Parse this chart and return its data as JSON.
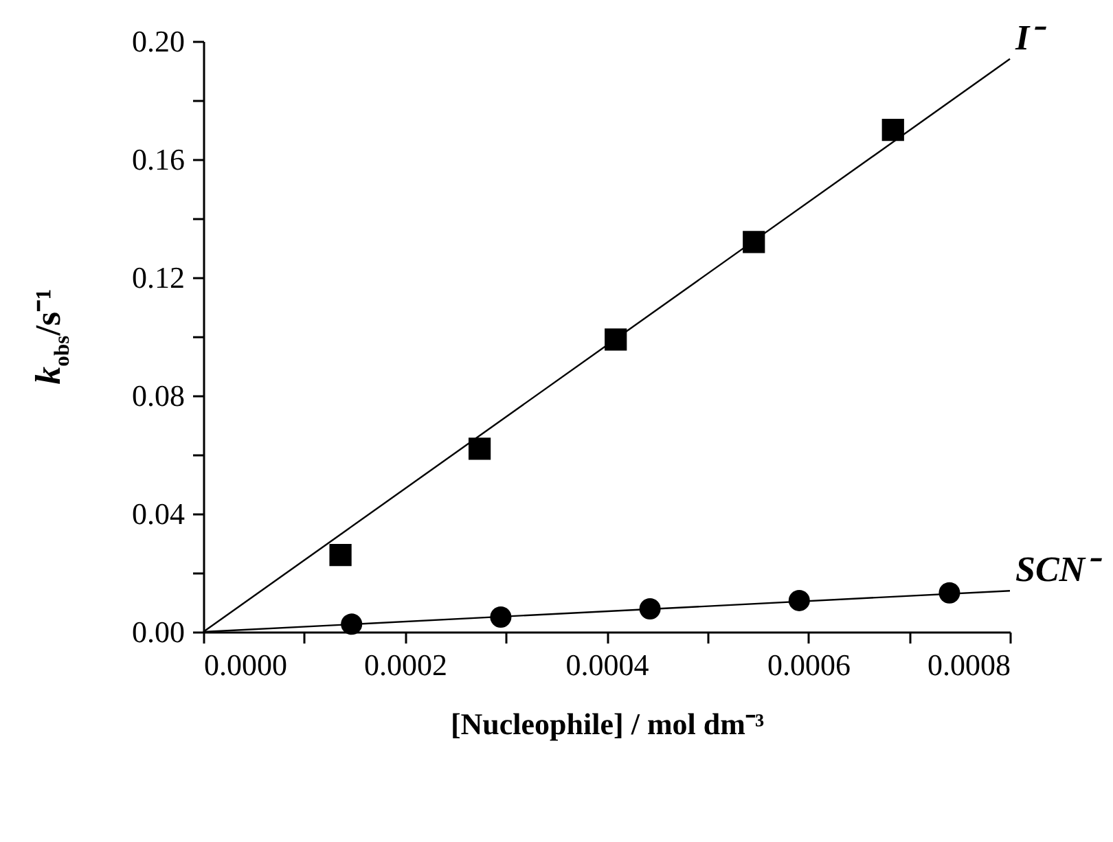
{
  "chart_data": {
    "type": "scatter",
    "xlabel": "[Nucleophile] / mol dm⁻³",
    "ylabel": "k$_{obs}$/s⁻¹",
    "xlim": [
      0,
      0.0008
    ],
    "ylim": [
      0,
      0.2
    ],
    "xticks": [
      {
        "value": 0,
        "label": "0.0000"
      },
      {
        "value": 0.0001,
        "label": null
      },
      {
        "value": 0.0002,
        "label": "0.0002"
      },
      {
        "value": 0.0003,
        "label": null
      },
      {
        "value": 0.0004,
        "label": "0.0004"
      },
      {
        "value": 0.0005,
        "label": null
      },
      {
        "value": 0.0006,
        "label": "0.0006"
      },
      {
        "value": 0.0007,
        "label": null
      },
      {
        "value": 0.0008,
        "label": "0.0008"
      }
    ],
    "yticks": [
      {
        "value": 0,
        "label": "0.00"
      },
      {
        "value": 0.02,
        "label": null
      },
      {
        "value": 0.04,
        "label": "0.04"
      },
      {
        "value": 0.06,
        "label": null
      },
      {
        "value": 0.08,
        "label": "0.08"
      },
      {
        "value": 0.1,
        "label": null
      },
      {
        "value": 0.12,
        "label": "0.12"
      },
      {
        "value": 0.14,
        "label": null
      },
      {
        "value": 0.16,
        "label": "0.16"
      },
      {
        "value": 0.18,
        "label": null
      },
      {
        "value": 0.2,
        "label": "0.20"
      }
    ],
    "grid": false,
    "series": [
      {
        "type": "scatter",
        "marker": "square",
        "color": "#000000",
        "x": [
          0.000136,
          0.000274,
          0.000409,
          0.000546,
          0.000684
        ],
        "values": [
          0.026,
          0.062,
          0.099,
          0.132,
          0.17
        ]
      },
      {
        "type": "line",
        "name": "I⁻",
        "color": "#000000",
        "x": [
          0,
          0.0008
        ],
        "values": [
          0,
          0.194
        ]
      },
      {
        "type": "scatter",
        "marker": "circle",
        "color": "#000000",
        "x": [
          0.000147,
          0.000295,
          0.000443,
          0.000591,
          0.00074
        ],
        "values": [
          0.0026,
          0.005,
          0.0078,
          0.0106,
          0.0132
        ]
      },
      {
        "type": "line",
        "name": "SCN⁻",
        "color": "#000000",
        "x": [
          0,
          0.0008
        ],
        "values": [
          0,
          0.0139
        ]
      }
    ]
  }
}
